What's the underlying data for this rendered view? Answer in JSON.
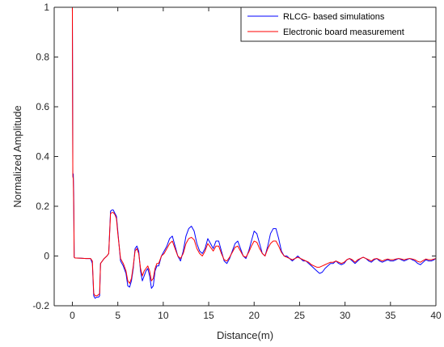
{
  "chart_data": {
    "type": "line",
    "title": "",
    "xlabel": "Distance(m)",
    "ylabel": "Normalized Amplitude",
    "xlim": [
      -2,
      40
    ],
    "ylim": [
      -0.2,
      1
    ],
    "xticks": [
      0,
      5,
      10,
      15,
      20,
      25,
      30,
      35,
      40
    ],
    "xtick_labels": [
      "0",
      "5",
      "10",
      "15",
      "20",
      "25",
      "30",
      "35",
      "40"
    ],
    "yticks": [
      -0.2,
      0,
      0.2,
      0.4,
      0.6,
      0.8,
      1
    ],
    "ytick_labels": [
      "-0.2",
      "0",
      "0.2",
      "0.4",
      "0.6",
      "0.8",
      "1"
    ],
    "grid": false,
    "legend_position": "top-right",
    "series": [
      {
        "name": "RLCG- based simulations",
        "color": "#0000ff",
        "x": [
          -0.1,
          -0.05,
          0.0,
          0.05,
          0.1,
          0.15,
          0.2,
          0.3,
          0.4,
          1.0,
          1.5,
          2.0,
          2.2,
          2.35,
          2.5,
          2.7,
          2.9,
          3.0,
          3.1,
          3.5,
          3.8,
          4.0,
          4.2,
          4.35,
          4.5,
          4.7,
          4.85,
          5.0,
          5.3,
          5.6,
          5.9,
          6.1,
          6.3,
          6.5,
          6.7,
          6.9,
          7.1,
          7.3,
          7.5,
          7.7,
          7.9,
          8.1,
          8.3,
          8.5,
          8.7,
          8.9,
          9.1,
          9.3,
          9.5,
          9.8,
          10.1,
          10.4,
          10.7,
          11.0,
          11.3,
          11.6,
          11.9,
          12.2,
          12.5,
          12.8,
          13.1,
          13.4,
          13.7,
          14.0,
          14.3,
          14.6,
          14.9,
          15.2,
          15.5,
          15.8,
          16.1,
          16.4,
          16.7,
          17.0,
          17.3,
          17.6,
          17.9,
          18.2,
          18.5,
          18.8,
          19.1,
          19.4,
          19.7,
          20.0,
          20.3,
          20.6,
          20.9,
          21.2,
          21.5,
          21.8,
          22.1,
          22.4,
          22.7,
          23.0,
          23.3,
          23.6,
          23.9,
          24.2,
          24.5,
          24.8,
          25.1,
          25.4,
          25.7,
          26.0,
          26.3,
          26.6,
          26.9,
          27.2,
          27.5,
          27.8,
          28.1,
          28.4,
          28.7,
          29.0,
          29.3,
          29.6,
          29.9,
          30.2,
          30.5,
          30.8,
          31.1,
          31.4,
          31.7,
          32.0,
          32.3,
          32.6,
          32.9,
          33.2,
          33.5,
          33.8,
          34.1,
          34.4,
          34.7,
          35.0,
          35.3,
          35.6,
          35.9,
          36.2,
          36.5,
          36.8,
          37.1,
          37.4,
          37.7,
          38.0,
          38.3,
          38.6,
          38.9,
          39.2,
          39.5,
          39.8,
          40.0
        ],
        "y": [
          1.0,
          1.0,
          1.0,
          0.33,
          0.33,
          0.25,
          -0.005,
          -0.008,
          -0.008,
          -0.009,
          -0.01,
          -0.01,
          -0.03,
          -0.16,
          -0.17,
          -0.165,
          -0.165,
          -0.16,
          -0.03,
          -0.01,
          0.0,
          0.01,
          0.18,
          0.185,
          0.185,
          0.17,
          0.16,
          0.1,
          -0.02,
          -0.04,
          -0.07,
          -0.12,
          -0.125,
          -0.1,
          -0.05,
          0.03,
          0.04,
          0.02,
          -0.06,
          -0.1,
          -0.08,
          -0.06,
          -0.05,
          -0.08,
          -0.13,
          -0.12,
          -0.06,
          -0.04,
          -0.04,
          0.0,
          0.02,
          0.04,
          0.07,
          0.08,
          0.04,
          0.0,
          -0.02,
          0.02,
          0.08,
          0.11,
          0.12,
          0.1,
          0.05,
          0.02,
          0.01,
          0.03,
          0.07,
          0.05,
          0.03,
          0.06,
          0.06,
          0.02,
          -0.02,
          -0.03,
          -0.01,
          0.02,
          0.05,
          0.06,
          0.03,
          0.0,
          -0.01,
          0.02,
          0.06,
          0.1,
          0.09,
          0.05,
          0.01,
          0.0,
          0.04,
          0.09,
          0.11,
          0.11,
          0.07,
          0.02,
          0.0,
          0.0,
          -0.01,
          -0.02,
          -0.01,
          0.0,
          -0.01,
          -0.02,
          -0.02,
          -0.03,
          -0.04,
          -0.05,
          -0.06,
          -0.07,
          -0.065,
          -0.05,
          -0.04,
          -0.03,
          -0.03,
          -0.02,
          -0.03,
          -0.035,
          -0.03,
          -0.015,
          -0.01,
          -0.02,
          -0.03,
          -0.02,
          -0.01,
          -0.005,
          -0.01,
          -0.02,
          -0.025,
          -0.015,
          -0.01,
          -0.02,
          -0.025,
          -0.02,
          -0.015,
          -0.02,
          -0.02,
          -0.015,
          -0.01,
          -0.015,
          -0.02,
          -0.015,
          -0.01,
          -0.015,
          -0.02,
          -0.03,
          -0.035,
          -0.025,
          -0.015,
          -0.02,
          -0.02,
          -0.015,
          -0.01
        ]
      },
      {
        "name": "Electronic board measurement",
        "color": "#ff0000",
        "x": [
          -0.1,
          -0.05,
          0.0,
          0.05,
          0.1,
          0.15,
          0.2,
          0.3,
          0.4,
          1.0,
          1.5,
          2.0,
          2.2,
          2.35,
          2.5,
          2.7,
          2.9,
          3.0,
          3.1,
          3.5,
          3.8,
          4.0,
          4.2,
          4.35,
          4.5,
          4.7,
          4.85,
          5.0,
          5.3,
          5.6,
          5.9,
          6.1,
          6.3,
          6.5,
          6.7,
          6.9,
          7.1,
          7.3,
          7.5,
          7.7,
          7.9,
          8.1,
          8.3,
          8.5,
          8.7,
          8.9,
          9.1,
          9.3,
          9.5,
          9.8,
          10.1,
          10.4,
          10.7,
          11.0,
          11.3,
          11.6,
          11.9,
          12.2,
          12.5,
          12.8,
          13.1,
          13.4,
          13.7,
          14.0,
          14.3,
          14.6,
          14.9,
          15.2,
          15.5,
          15.8,
          16.1,
          16.4,
          16.7,
          17.0,
          17.3,
          17.6,
          17.9,
          18.2,
          18.5,
          18.8,
          19.1,
          19.4,
          19.7,
          20.0,
          20.3,
          20.6,
          20.9,
          21.2,
          21.5,
          21.8,
          22.1,
          22.4,
          22.7,
          23.0,
          23.3,
          23.6,
          23.9,
          24.2,
          24.5,
          24.8,
          25.1,
          25.4,
          25.7,
          26.0,
          26.3,
          26.6,
          26.9,
          27.2,
          27.5,
          27.8,
          28.1,
          28.4,
          28.7,
          29.0,
          29.3,
          29.6,
          29.9,
          30.2,
          30.5,
          30.8,
          31.1,
          31.4,
          31.7,
          32.0,
          32.3,
          32.6,
          32.9,
          33.2,
          33.5,
          33.8,
          34.1,
          34.4,
          34.7,
          35.0,
          35.3,
          35.6,
          35.9,
          36.2,
          36.5,
          36.8,
          37.1,
          37.4,
          37.7,
          38.0,
          38.3,
          38.6,
          38.9,
          39.2,
          39.5,
          39.8,
          40.0
        ],
        "y": [
          1.0,
          1.0,
          1.0,
          0.32,
          0.31,
          0.2,
          -0.005,
          -0.008,
          -0.008,
          -0.009,
          -0.01,
          -0.01,
          -0.02,
          -0.15,
          -0.16,
          -0.16,
          -0.155,
          -0.15,
          -0.03,
          -0.01,
          0.0,
          0.01,
          0.17,
          0.175,
          0.175,
          0.165,
          0.15,
          0.09,
          -0.01,
          -0.03,
          -0.06,
          -0.1,
          -0.11,
          -0.09,
          -0.04,
          0.02,
          0.03,
          0.01,
          -0.05,
          -0.08,
          -0.06,
          -0.05,
          -0.04,
          -0.06,
          -0.1,
          -0.09,
          -0.05,
          -0.03,
          -0.03,
          0.0,
          0.01,
          0.03,
          0.05,
          0.06,
          0.03,
          0.0,
          -0.01,
          0.01,
          0.05,
          0.07,
          0.075,
          0.065,
          0.03,
          0.01,
          0.0,
          0.02,
          0.05,
          0.035,
          0.02,
          0.04,
          0.04,
          0.01,
          -0.015,
          -0.02,
          -0.005,
          0.015,
          0.035,
          0.04,
          0.02,
          0.0,
          -0.005,
          0.015,
          0.04,
          0.06,
          0.055,
          0.03,
          0.01,
          0.0,
          0.03,
          0.05,
          0.06,
          0.06,
          0.04,
          0.015,
          0.0,
          -0.005,
          -0.01,
          -0.015,
          -0.01,
          -0.005,
          -0.01,
          -0.015,
          -0.02,
          -0.025,
          -0.035,
          -0.04,
          -0.045,
          -0.045,
          -0.04,
          -0.035,
          -0.03,
          -0.025,
          -0.025,
          -0.02,
          -0.025,
          -0.03,
          -0.025,
          -0.015,
          -0.01,
          -0.015,
          -0.025,
          -0.015,
          -0.01,
          -0.005,
          -0.01,
          -0.015,
          -0.02,
          -0.012,
          -0.01,
          -0.015,
          -0.02,
          -0.015,
          -0.012,
          -0.015,
          -0.015,
          -0.012,
          -0.01,
          -0.012,
          -0.015,
          -0.012,
          -0.01,
          -0.012,
          -0.015,
          -0.022,
          -0.025,
          -0.018,
          -0.012,
          -0.015,
          -0.015,
          -0.012,
          -0.01
        ]
      }
    ]
  }
}
